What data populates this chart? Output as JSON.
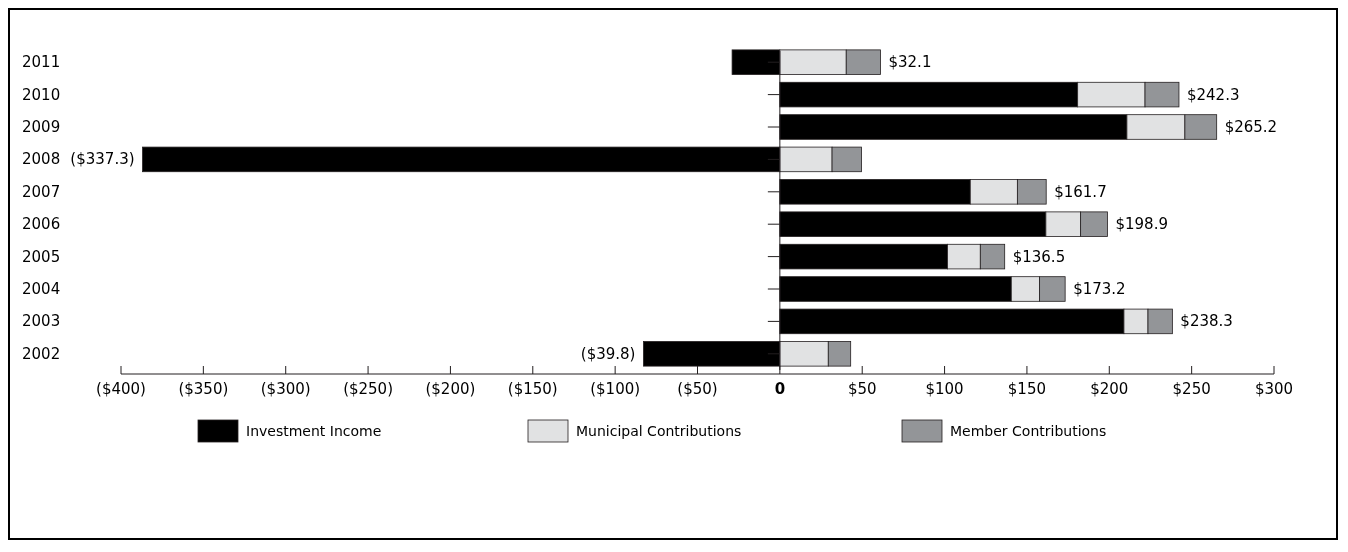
{
  "chart_data": {
    "type": "bar",
    "orientation": "horizontal",
    "stacked": true,
    "categories": [
      "2011",
      "2010",
      "2009",
      "2008",
      "2007",
      "2006",
      "2005",
      "2004",
      "2003",
      "2002"
    ],
    "series": [
      {
        "name": "Investment Income",
        "color": "#000000",
        "values": [
          -29.0,
          180.8,
          210.7,
          -386.9,
          115.6,
          161.5,
          101.8,
          140.5,
          208.9,
          -82.8
        ]
      },
      {
        "name": "Municipal Contributions",
        "color": "#e1e2e3",
        "values": [
          40.3,
          40.9,
          35.2,
          31.7,
          28.6,
          21.1,
          19.9,
          17.2,
          14.6,
          29.4
        ]
      },
      {
        "name": "Member Contributions",
        "color": "#939598",
        "values": [
          20.8,
          20.6,
          19.3,
          17.9,
          17.5,
          16.3,
          14.8,
          15.5,
          14.8,
          13.6
        ]
      }
    ],
    "totals": [
      "$32.1",
      "$242.3",
      "$265.2",
      "($337.3)",
      "$161.7",
      "$198.9",
      "$136.5",
      "$173.2",
      "$238.3",
      "($39.8)"
    ],
    "xlim": [
      -400,
      300
    ],
    "xticks": [
      {
        "value": -400,
        "label": "($400)"
      },
      {
        "value": -350,
        "label": "($350)"
      },
      {
        "value": -300,
        "label": "($300)"
      },
      {
        "value": -250,
        "label": "($250)"
      },
      {
        "value": -200,
        "label": "($200)"
      },
      {
        "value": -150,
        "label": "($150)"
      },
      {
        "value": -100,
        "label": "($100)"
      },
      {
        "value": -50,
        "label": "($50)"
      },
      0,
      {
        "value": 50,
        "label": "$50"
      },
      {
        "value": 100,
        "label": "$100"
      },
      {
        "value": 150,
        "label": "$150"
      },
      {
        "value": 200,
        "label": "$200"
      },
      {
        "value": 250,
        "label": "$250"
      },
      {
        "value": 300,
        "label": "$300"
      }
    ],
    "legend": "bottom"
  }
}
